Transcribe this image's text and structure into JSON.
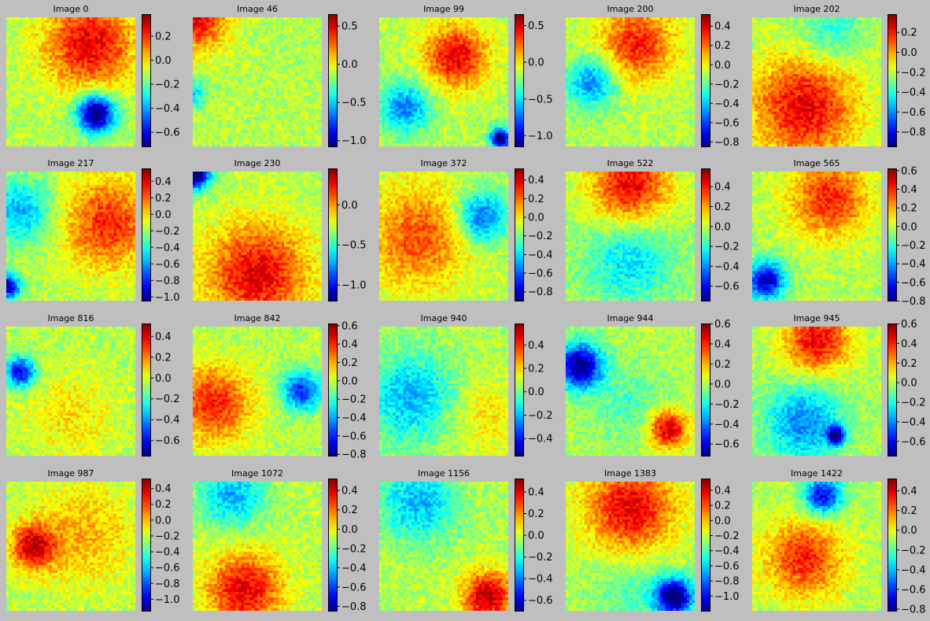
{
  "colormap": "jet",
  "background_color": "#bfbfbf",
  "chart_data": [
    {
      "type": "heatmap",
      "title": "Image 0",
      "grid": false,
      "vlim": [
        -0.72,
        0.38
      ],
      "ticks": [
        -0.6,
        -0.4,
        -0.2,
        0.0,
        0.2
      ],
      "tick_labels": [
        "−0.6",
        "−0.4",
        "−0.2",
        "0.0",
        "0.2"
      ],
      "pattern": "hot-top-right, cold diagonal band lower-right"
    },
    {
      "type": "heatmap",
      "title": "Image 46",
      "grid": false,
      "vlim": [
        -1.08,
        0.65
      ],
      "ticks": [
        -1.0,
        -0.5,
        0.0,
        0.5
      ],
      "tick_labels": [
        "−1.0",
        "−0.5",
        "0.0",
        "0.5"
      ],
      "pattern": "mostly neutral, hot top-left edge"
    },
    {
      "type": "heatmap",
      "title": "Image 99",
      "grid": false,
      "vlim": [
        -1.15,
        0.65
      ],
      "ticks": [
        -1.0,
        -0.5,
        0.0,
        0.5
      ],
      "tick_labels": [
        "−1.0",
        "−0.5",
        "0.0",
        "0.5"
      ],
      "pattern": "hot patches, cool left band, cold corner bottom-right"
    },
    {
      "type": "heatmap",
      "title": "Image 200",
      "grid": false,
      "vlim": [
        -0.85,
        0.52
      ],
      "ticks": [
        -0.8,
        -0.6,
        -0.4,
        -0.2,
        0.0,
        0.2,
        0.4
      ],
      "tick_labels": [
        "−0.8",
        "−0.6",
        "−0.4",
        "−0.2",
        "0.0",
        "0.2",
        "0.4"
      ],
      "pattern": "hot top-right, cool left patches"
    },
    {
      "type": "heatmap",
      "title": "Image 202",
      "grid": false,
      "vlim": [
        -0.95,
        0.38
      ],
      "ticks": [
        -0.8,
        -0.6,
        -0.4,
        -0.2,
        0.0,
        0.2
      ],
      "tick_labels": [
        "−0.8",
        "−0.6",
        "−0.4",
        "−0.2",
        "0.0",
        "0.2"
      ],
      "pattern": "mostly hot, cooler top band"
    },
    {
      "type": "heatmap",
      "title": "Image 217",
      "grid": false,
      "vlim": [
        -1.05,
        0.55
      ],
      "ticks": [
        -1.0,
        -0.8,
        -0.6,
        -0.4,
        -0.2,
        0.0,
        0.2,
        0.4
      ],
      "tick_labels": [
        "−1.0",
        "−0.8",
        "−0.6",
        "−0.4",
        "−0.2",
        "0.0",
        "0.2",
        "0.4"
      ],
      "pattern": "hot right side, cool left streaks"
    },
    {
      "type": "heatmap",
      "title": "Image 230",
      "grid": false,
      "vlim": [
        -1.2,
        0.45
      ],
      "ticks": [
        -1.0,
        -0.5,
        0.0
      ],
      "tick_labels": [
        "−1.0",
        "−0.5",
        "0.0"
      ],
      "pattern": "warm overall, cold top-left corner"
    },
    {
      "type": "heatmap",
      "title": "Image 372",
      "grid": false,
      "vlim": [
        -0.9,
        0.52
      ],
      "ticks": [
        -0.8,
        -0.6,
        -0.4,
        -0.2,
        0.0,
        0.2,
        0.4
      ],
      "tick_labels": [
        "−0.8",
        "−0.6",
        "−0.4",
        "−0.2",
        "0.0",
        "0.2",
        "0.4"
      ],
      "pattern": "warm overall, cool region upper-right"
    },
    {
      "type": "heatmap",
      "title": "Image 522",
      "grid": false,
      "vlim": [
        -0.75,
        0.58
      ],
      "ticks": [
        -0.6,
        -0.4,
        -0.2,
        0.0,
        0.2,
        0.4
      ],
      "tick_labels": [
        "−0.6",
        "−0.4",
        "−0.2",
        "0.0",
        "0.2",
        "0.4"
      ],
      "pattern": "hot top band, cool lower area"
    },
    {
      "type": "heatmap",
      "title": "Image 565",
      "grid": false,
      "vlim": [
        -0.8,
        0.62
      ],
      "ticks": [
        -0.8,
        -0.6,
        -0.4,
        -0.2,
        0.0,
        0.2,
        0.4,
        0.6
      ],
      "tick_labels": [
        "−0.8",
        "−0.6",
        "−0.4",
        "−0.2",
        "0.0",
        "0.2",
        "0.4",
        "0.6"
      ],
      "pattern": "warm top, cool lower-left with cold spot"
    },
    {
      "type": "heatmap",
      "title": "Image 816",
      "grid": false,
      "vlim": [
        -0.75,
        0.52
      ],
      "ticks": [
        -0.6,
        -0.4,
        -0.2,
        0.0,
        0.2,
        0.4
      ],
      "tick_labels": [
        "−0.6",
        "−0.4",
        "−0.2",
        "0.0",
        "0.2",
        "0.4"
      ],
      "pattern": "mixed, cold streak left"
    },
    {
      "type": "heatmap",
      "title": "Image 842",
      "grid": false,
      "vlim": [
        -0.82,
        0.62
      ],
      "ticks": [
        -0.8,
        -0.6,
        -0.4,
        -0.2,
        0.0,
        0.2,
        0.4,
        0.6
      ],
      "tick_labels": [
        "−0.8",
        "−0.6",
        "−0.4",
        "−0.2",
        "0.0",
        "0.2",
        "0.4",
        "0.6"
      ],
      "pattern": "warm left, cool diagonal streaks right"
    },
    {
      "type": "heatmap",
      "title": "Image 940",
      "grid": false,
      "vlim": [
        -0.55,
        0.58
      ],
      "ticks": [
        -0.4,
        -0.2,
        0.0,
        0.2,
        0.4
      ],
      "tick_labels": [
        "−0.4",
        "−0.2",
        "0.0",
        "0.2",
        "0.4"
      ],
      "pattern": "cool left, neutral right"
    },
    {
      "type": "heatmap",
      "title": "Image 944",
      "grid": false,
      "vlim": [
        -0.72,
        0.6
      ],
      "ticks": [
        -0.6,
        -0.4,
        -0.2,
        0.0,
        0.2,
        0.4,
        0.6
      ],
      "tick_labels": [
        "−0.6",
        "−0.4",
        "−0.2",
        "0.0",
        "0.2",
        "0.4",
        "0.6"
      ],
      "pattern": "cold upper-left block, hot curve right"
    },
    {
      "type": "heatmap",
      "title": "Image 945",
      "grid": false,
      "vlim": [
        -0.75,
        0.6
      ],
      "ticks": [
        -0.6,
        -0.4,
        -0.2,
        0.0,
        0.2,
        0.4,
        0.6
      ],
      "tick_labels": [
        "−0.6",
        "−0.4",
        "−0.2",
        "0.0",
        "0.2",
        "0.4",
        "0.6"
      ],
      "pattern": "hot top band, cool lower half"
    },
    {
      "type": "heatmap",
      "title": "Image 987",
      "grid": false,
      "vlim": [
        -1.15,
        0.52
      ],
      "ticks": [
        -1.0,
        -0.8,
        -0.6,
        -0.4,
        -0.2,
        0.0,
        0.2,
        0.4
      ],
      "tick_labels": [
        "−1.0",
        "−0.8",
        "−0.6",
        "−0.4",
        "−0.2",
        "0.0",
        "0.2",
        "0.4"
      ],
      "pattern": "warm overall, hot curved band left"
    },
    {
      "type": "heatmap",
      "title": "Image 1072",
      "grid": false,
      "vlim": [
        -0.85,
        0.52
      ],
      "ticks": [
        -0.8,
        -0.6,
        -0.4,
        -0.2,
        0.0,
        0.2,
        0.4
      ],
      "tick_labels": [
        "−0.8",
        "−0.6",
        "−0.4",
        "−0.2",
        "0.0",
        "0.2",
        "0.4"
      ],
      "pattern": "cool top, hot bottom"
    },
    {
      "type": "heatmap",
      "title": "Image 1156",
      "grid": false,
      "vlim": [
        -0.7,
        0.52
      ],
      "ticks": [
        -0.6,
        -0.4,
        -0.2,
        0.0,
        0.2,
        0.4
      ],
      "tick_labels": [
        "−0.6",
        "−0.4",
        "−0.2",
        "0.0",
        "0.2",
        "0.4"
      ],
      "pattern": "cool top, hot bottom-right"
    },
    {
      "type": "heatmap",
      "title": "Image 1383",
      "grid": false,
      "vlim": [
        -1.2,
        0.55
      ],
      "ticks": [
        -1.0,
        -0.8,
        -0.6,
        -0.4,
        -0.2,
        0.0,
        0.2,
        0.4
      ],
      "tick_labels": [
        "−1.0",
        "−0.8",
        "−0.6",
        "−0.4",
        "−0.2",
        "0.0",
        "0.2",
        "0.4"
      ],
      "pattern": "hot top, cool bottom"
    },
    {
      "type": "heatmap",
      "title": "Image 1422",
      "grid": false,
      "vlim": [
        -0.82,
        0.52
      ],
      "ticks": [
        -0.8,
        -0.6,
        -0.4,
        -0.2,
        0.0,
        0.2,
        0.4
      ],
      "tick_labels": [
        "−0.8",
        "−0.6",
        "−0.4",
        "−0.2",
        "0.0",
        "0.2",
        "0.4"
      ],
      "pattern": "cool top-right streak, warm center"
    }
  ]
}
